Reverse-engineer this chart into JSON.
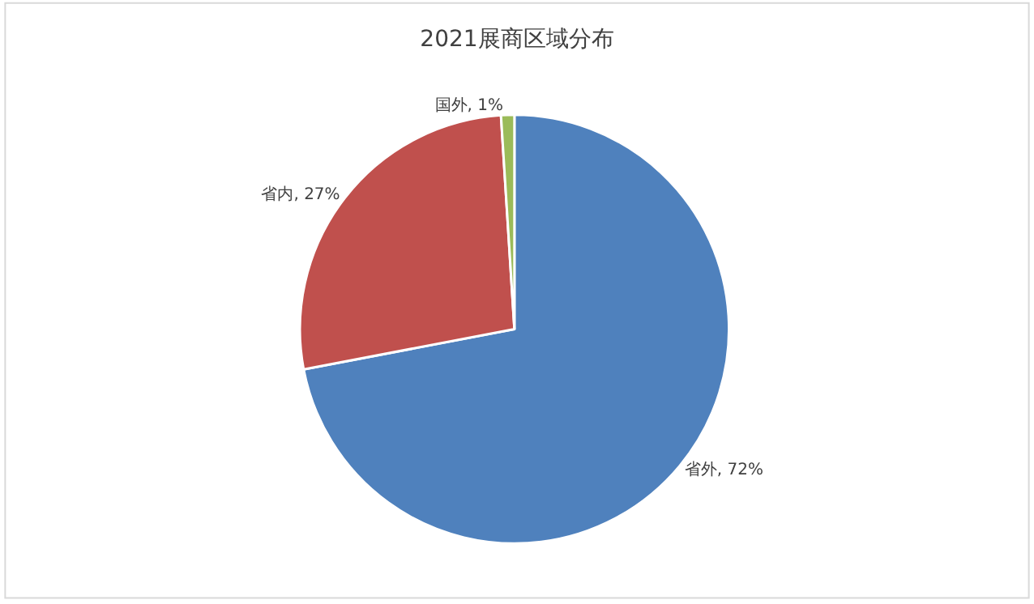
{
  "chart_data": {
    "type": "pie",
    "title": "2021展商区域分布",
    "categories": [
      "省外",
      "省内",
      "国外"
    ],
    "values": [
      72,
      27,
      1
    ],
    "value_labels": [
      "72%",
      "27%",
      "1%"
    ],
    "colors": [
      "#4f81bd",
      "#c0504d",
      "#9bbb59"
    ],
    "legend": false
  }
}
